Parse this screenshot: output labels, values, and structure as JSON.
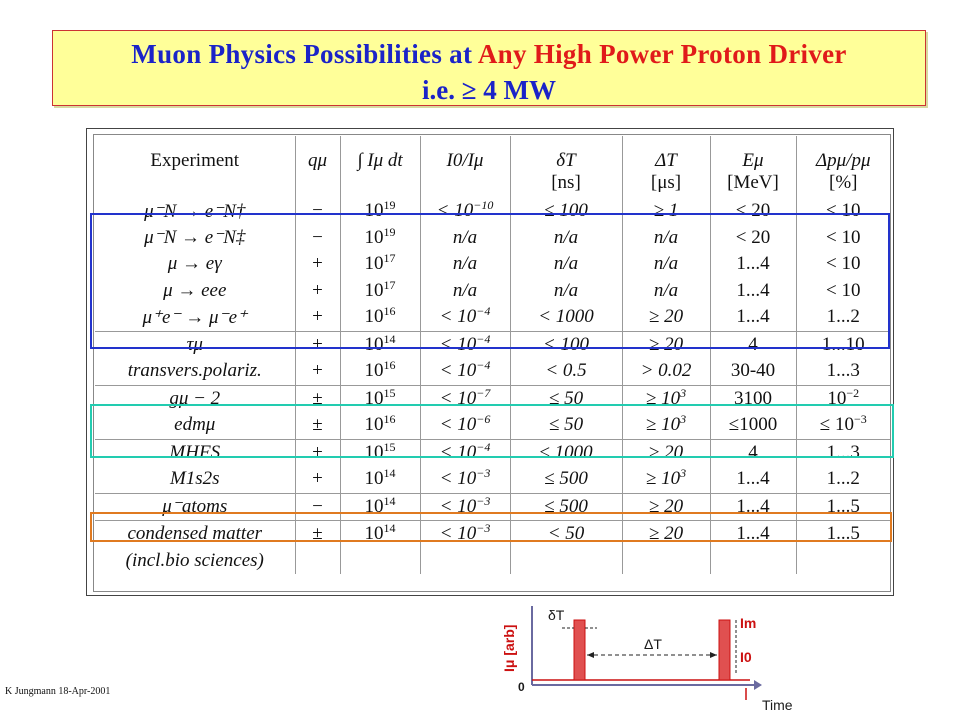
{
  "title": {
    "part1": "Muon Physics Possibilities at ",
    "part2": "Any High Power Proton Driver",
    "line2": "i.e.  ≥ 4 MW"
  },
  "table": {
    "headers": [
      "Experiment",
      "qμ",
      "∫ Iμ dt",
      "I0/Iμ",
      "δT",
      "ΔT",
      "Eμ",
      "Δpμ/pμ"
    ],
    "header_units": [
      "",
      "",
      "",
      "",
      "[ns]",
      "[μs]",
      "[MeV]",
      "[%]"
    ],
    "rows": [
      {
        "exp": "μ⁻N → e⁻N†",
        "q": "−",
        "int": "10",
        "int_exp": "19",
        "ratio": "< 10",
        "ratio_exp": "−10",
        "dT": "≤ 100",
        "DT": "≥ 1",
        "E": "< 20",
        "dp": "< 10"
      },
      {
        "exp": "μ⁻N → e⁻N‡",
        "q": "−",
        "int": "10",
        "int_exp": "19",
        "ratio": "n/a",
        "ratio_exp": "",
        "dT": "n/a",
        "DT": "n/a",
        "E": "< 20",
        "dp": "< 10"
      },
      {
        "exp": "μ → eγ",
        "q": "+",
        "int": "10",
        "int_exp": "17",
        "ratio": "n/a",
        "ratio_exp": "",
        "dT": "n/a",
        "DT": "n/a",
        "E": "1...4",
        "dp": "< 10"
      },
      {
        "exp": "μ → eee",
        "q": "+",
        "int": "10",
        "int_exp": "17",
        "ratio": "n/a",
        "ratio_exp": "",
        "dT": "n/a",
        "DT": "n/a",
        "E": "1...4",
        "dp": "< 10"
      },
      {
        "exp": "μ⁺e⁻ → μ⁻e⁺",
        "q": "+",
        "int": "10",
        "int_exp": "16",
        "ratio": "< 10",
        "ratio_exp": "−4",
        "dT": "< 1000",
        "DT": "≥ 20",
        "E": "1...4",
        "dp": "1...2"
      },
      {
        "exp": "τμ",
        "q": "+",
        "int": "10",
        "int_exp": "14",
        "ratio": "< 10",
        "ratio_exp": "−4",
        "dT": "< 100",
        "DT": "≥ 20",
        "E": "4",
        "dp": "1...10"
      },
      {
        "exp": "transvers.polariz.",
        "q": "+",
        "int": "10",
        "int_exp": "16",
        "ratio": "< 10",
        "ratio_exp": "−4",
        "dT": "< 0.5",
        "DT": "> 0.02",
        "E": "30-40",
        "dp": "1...3"
      },
      {
        "exp": "gμ − 2",
        "q": "±",
        "int": "10",
        "int_exp": "15",
        "ratio": "< 10",
        "ratio_exp": "−7",
        "dT": "≤ 50",
        "DT": "≥ 10",
        "DT_exp": "3",
        "E": "3100",
        "dp": "10",
        "dp_exp": "−2"
      },
      {
        "exp": "edmμ",
        "q": "±",
        "int": "10",
        "int_exp": "16",
        "ratio": "< 10",
        "ratio_exp": "−6",
        "dT": "≤ 50",
        "DT": "≥ 10",
        "DT_exp": "3",
        "E": "≤1000",
        "dp": "≤ 10",
        "dp_exp": "−3"
      },
      {
        "exp": "MHFS",
        "q": "+",
        "int": "10",
        "int_exp": "15",
        "ratio": "< 10",
        "ratio_exp": "−4",
        "dT": "≤ 1000",
        "DT": "≥ 20",
        "E": "4",
        "dp": "1...3"
      },
      {
        "exp": "M1s2s",
        "q": "+",
        "int": "10",
        "int_exp": "14",
        "ratio": "< 10",
        "ratio_exp": "−3",
        "dT": "≤ 500",
        "DT": "≥ 10",
        "DT_exp": "3",
        "E": "1...4",
        "dp": "1...2"
      },
      {
        "exp": "μ⁻atoms",
        "q": "−",
        "int": "10",
        "int_exp": "14",
        "ratio": "< 10",
        "ratio_exp": "−3",
        "dT": "≤ 500",
        "DT": "≥ 20",
        "E": "1...4",
        "dp": "1...5"
      },
      {
        "exp": "condensed matter",
        "q": "±",
        "int": "10",
        "int_exp": "14",
        "ratio": "< 10",
        "ratio_exp": "−3",
        "dT": "< 50",
        "DT": "≥ 20",
        "E": "1...4",
        "dp": "1...5"
      },
      {
        "exp": "(incl.bio sciences)",
        "q": "",
        "int": "",
        "int_exp": "",
        "ratio": "",
        "ratio_exp": "",
        "dT": "",
        "DT": "",
        "E": "",
        "dp": ""
      }
    ]
  },
  "diagram": {
    "y_label": "Iμ [arb]",
    "origin": "0",
    "dT_label": "δT",
    "DT_label": "ΔT",
    "Im_label": "Im",
    "I0_label": "I0",
    "x_label": "Time"
  },
  "footer": "K Jungmann 18-Apr-2001",
  "colors": {
    "title_bg": "#ffff99",
    "title_blue": "#1b23c8",
    "title_red": "#e01a1a",
    "box_blue": "#2233cc",
    "box_teal": "#22ccb0",
    "box_orange": "#e07a20",
    "pulse_red": "#e05050"
  }
}
